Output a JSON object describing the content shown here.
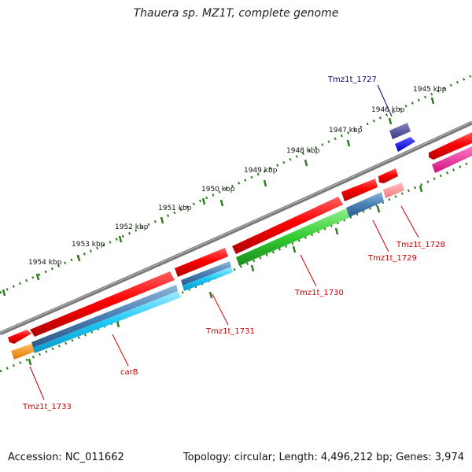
{
  "title": "Thauera sp. MZ1T, complete genome",
  "footer": {
    "accession": "Accession: NC_011662",
    "topology": "Topology: circular; Length: 4,496,212 bp; Genes: 3,974"
  },
  "colors": {
    "backbone": "#808080",
    "ticks": "#2e7d1e",
    "red_label": "#cc0000",
    "blue_label": "#00007f"
  },
  "kbp_labels": [
    "1945 kbp",
    "1946 kbp",
    "1947 kbp",
    "1948 kbp",
    "1949 kbp",
    "1950 kbp",
    "1951 kbp",
    "1952 kbp",
    "1953 kbp",
    "1954 kbp"
  ],
  "gene_labels": [
    {
      "id": "tmz1t-1727",
      "text": "Tmz1t_1727",
      "color": "#00007f"
    },
    {
      "id": "tmz1t-1728",
      "text": "Tmz1t_1728",
      "color": "#cc0000"
    },
    {
      "id": "tmz1t-1729",
      "text": "Tmz1t_1729",
      "color": "#cc0000"
    },
    {
      "id": "tmz1t-1730",
      "text": "Tmz1t_1730",
      "color": "#cc0000"
    },
    {
      "id": "tmz1t-1731",
      "text": "Tmz1t_1731",
      "color": "#cc0000"
    },
    {
      "id": "carb",
      "text": "carB",
      "color": "#cc0000"
    },
    {
      "id": "tmz1t-1733",
      "text": "Tmz1t_1733",
      "color": "#cc0000"
    }
  ]
}
